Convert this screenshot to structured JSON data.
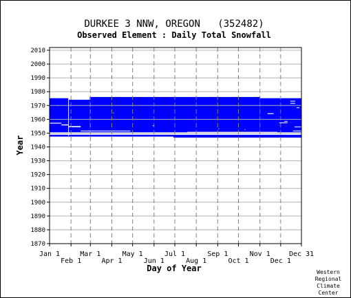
{
  "chart_data": {
    "type": "heatmap",
    "title": "DURKEE 3 NNW, OREGON   (352482)",
    "subtitle": "Observed Element : Daily Total Snowfall",
    "xlabel": "Day of Year",
    "ylabel": "Year",
    "ylim": [
      1870,
      2012
    ],
    "xlim": [
      1,
      365
    ],
    "y_ticks": [
      1870,
      1880,
      1890,
      1900,
      1910,
      1920,
      1930,
      1940,
      1950,
      1960,
      1970,
      1980,
      1990,
      2000,
      2010
    ],
    "x_ticks_upper": [
      {
        "label": "Jan 1",
        "day": 1
      },
      {
        "label": "Mar 1",
        "day": 60
      },
      {
        "label": "May 1",
        "day": 121
      },
      {
        "label": "Jul 1",
        "day": 182
      },
      {
        "label": "Sep 1",
        "day": 244
      },
      {
        "label": "Nov 1",
        "day": 305
      },
      {
        "label": "Dec 31",
        "day": 365
      }
    ],
    "x_ticks_lower": [
      {
        "label": "Feb 1",
        "day": 32
      },
      {
        "label": "Apr 1",
        "day": 91
      },
      {
        "label": "Jun 1",
        "day": 152
      },
      {
        "label": "Aug 1",
        "day": 213
      },
      {
        "label": "Oct 1",
        "day": 274
      },
      {
        "label": "Dec 1",
        "day": 335
      }
    ],
    "grid": true,
    "data_color": "#0000ff",
    "series": [
      {
        "periods": [
          {
            "day_start": 1,
            "day_end": 28,
            "year_start": 1947.5,
            "year_end": 1975.3
          },
          {
            "day_start": 28,
            "day_end": 59,
            "year_start": 1947.5,
            "year_end": 1974.2
          },
          {
            "day_start": 59,
            "day_end": 180,
            "year_start": 1947.5,
            "year_end": 1976.2
          },
          {
            "day_start": 180,
            "day_end": 305,
            "year_start": 1946.8,
            "year_end": 1976.2
          },
          {
            "day_start": 305,
            "day_end": 365,
            "year_start": 1946.8,
            "year_end": 1975.3
          }
        ],
        "gaps": [
          {
            "day_start": 1,
            "day_end": 365,
            "year_start": 1948.8,
            "year_end": 1949.8
          },
          {
            "day_start": 1,
            "day_end": 18,
            "year_start": 1956.9,
            "year_end": 1957.5
          },
          {
            "day_start": 18,
            "day_end": 28,
            "year_start": 1955.6,
            "year_end": 1956.3
          },
          {
            "day_start": 28,
            "day_end": 46,
            "year_start": 1954.3,
            "year_end": 1955.1
          },
          {
            "day_start": 46,
            "day_end": 118,
            "year_start": 1951.3,
            "year_end": 1951.8
          },
          {
            "day_start": 1,
            "day_end": 365,
            "year_start": 1949.8,
            "year_end": 1950.6
          },
          {
            "day_start": 28,
            "day_end": 29,
            "year_start": 1948.0,
            "year_end": 1974.2
          },
          {
            "day_start": 143,
            "day_end": 162,
            "year_start": 1949.9,
            "year_end": 1950.4
          },
          {
            "day_start": 200,
            "day_end": 330,
            "year_start": 1950.4,
            "year_end": 1950.9
          },
          {
            "day_start": 316,
            "day_end": 325,
            "year_start": 1963.8,
            "year_end": 1964.4
          },
          {
            "day_start": 333,
            "day_end": 345,
            "year_start": 1957.2,
            "year_end": 1957.7
          },
          {
            "day_start": 349,
            "day_end": 356,
            "year_start": 1971.3,
            "year_end": 1971.8
          },
          {
            "day_start": 349,
            "day_end": 356,
            "year_start": 1972.9,
            "year_end": 1973.4
          },
          {
            "day_start": 355,
            "day_end": 365,
            "year_start": 1954.3,
            "year_end": 1954.8
          },
          {
            "day_start": 340,
            "day_end": 345,
            "year_start": 1958.3,
            "year_end": 1958.8
          },
          {
            "day_start": 150,
            "day_end": 152,
            "year_start": 1955.1,
            "year_end": 1955.6
          },
          {
            "day_start": 13,
            "day_end": 14,
            "year_start": 1969.8,
            "year_end": 1970.3
          },
          {
            "day_start": 93,
            "day_end": 94,
            "year_start": 1964.3,
            "year_end": 1964.8
          },
          {
            "day_start": 245,
            "day_end": 246,
            "year_start": 1952.9,
            "year_end": 1953.4
          },
          {
            "day_start": 283,
            "day_end": 284,
            "year_start": 1952.3,
            "year_end": 1952.8
          },
          {
            "day_start": 353,
            "day_end": 365,
            "year_start": 1951.3,
            "year_end": 1951.8
          },
          {
            "day_start": 358,
            "day_end": 362,
            "year_start": 1968.1,
            "year_end": 1968.6
          }
        ]
      }
    ]
  },
  "credit": [
    "Western",
    "Regional",
    "Climate",
    "Center"
  ]
}
